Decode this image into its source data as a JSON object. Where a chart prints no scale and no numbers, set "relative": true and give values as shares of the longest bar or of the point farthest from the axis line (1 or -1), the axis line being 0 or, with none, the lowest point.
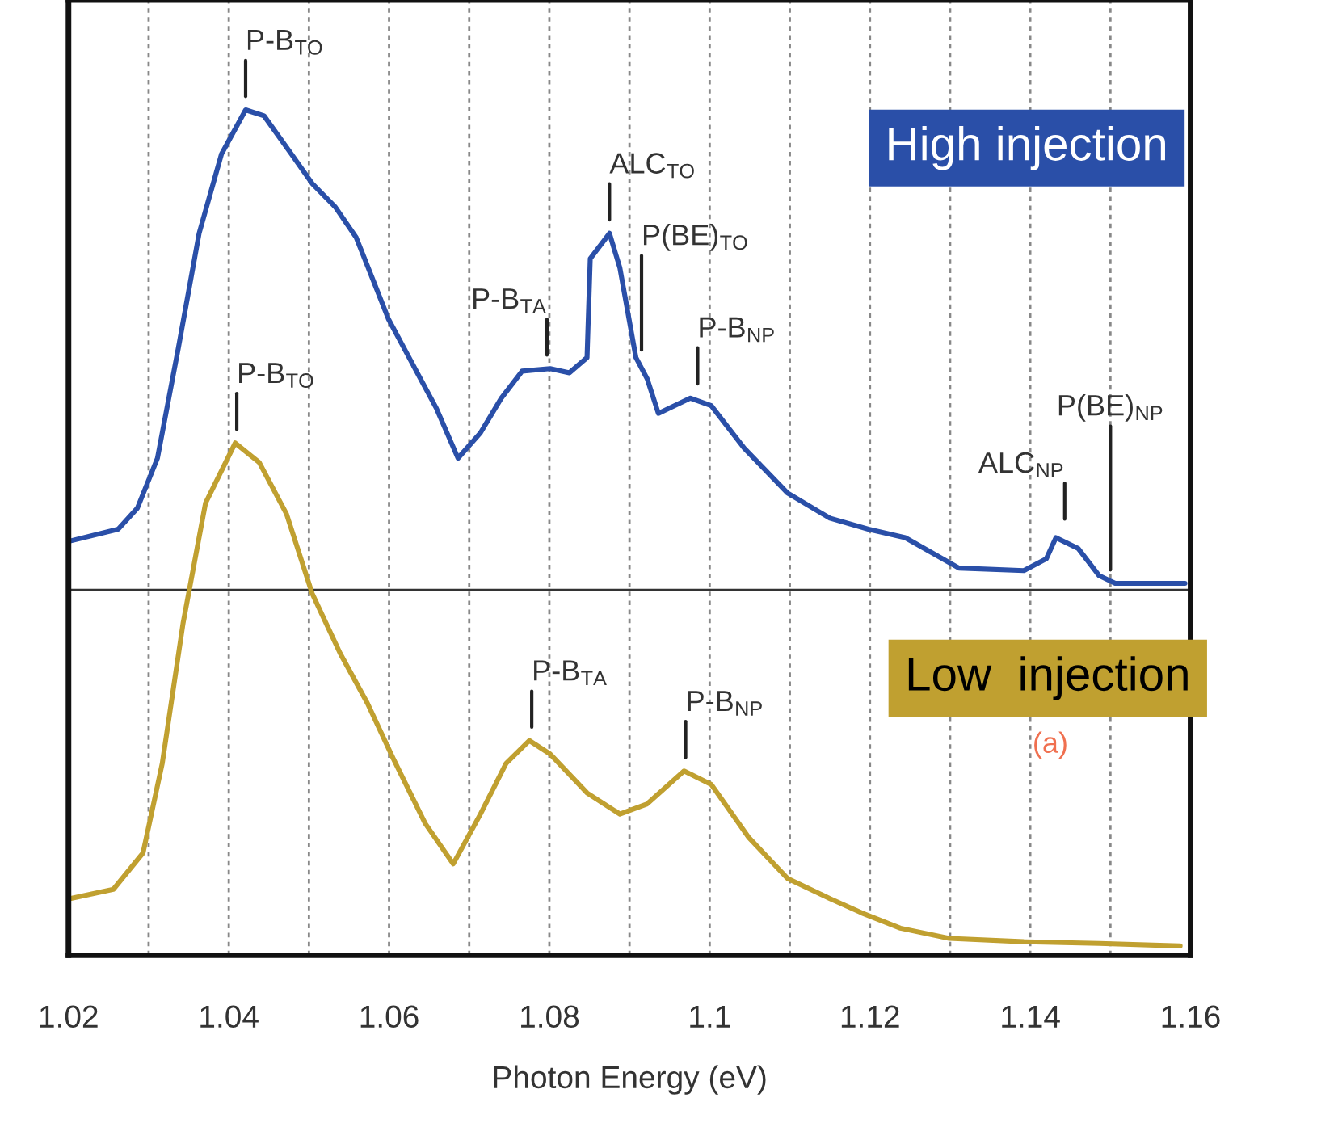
{
  "chart_data": {
    "type": "line",
    "relative": true,
    "xlabel": "Photon Energy (eV)",
    "xlim": [
      1.02,
      1.16
    ],
    "xticks": [
      1.02,
      {
        "value": 1.03,
        "label": null
      },
      1.04,
      {
        "value": 1.05,
        "label": null
      },
      1.06,
      {
        "value": 1.07,
        "label": null
      },
      1.08,
      {
        "value": 1.09,
        "label": null
      },
      1.1,
      {
        "value": 1.11,
        "label": null
      },
      1.12,
      {
        "value": 1.13,
        "label": null
      },
      1.14,
      {
        "value": 1.15,
        "label": null
      },
      1.16
    ],
    "grid": "x",
    "legend": false,
    "tick_labels": "x",
    "ref_lines": [
      {
        "axis": "y",
        "value": 0.432,
        "color": "#333333"
      }
    ],
    "series": [
      {
        "name": "High injection",
        "color": "#2a4fa8",
        "x": [
          1.0202,
          1.0262,
          1.0286,
          1.0311,
          1.0337,
          1.0363,
          1.0391,
          1.0421,
          1.0444,
          1.0478,
          1.0504,
          1.0533,
          1.0559,
          1.0579,
          1.0599,
          1.0625,
          1.0659,
          1.0686,
          1.0714,
          1.074,
          1.0766,
          1.0801,
          1.0825,
          1.0847,
          1.0851,
          1.0875,
          1.0888,
          1.0908,
          1.0922,
          1.0936,
          1.0976,
          1.1002,
          1.1043,
          1.1097,
          1.115,
          1.1198,
          1.1244,
          1.1311,
          1.1392,
          1.142,
          1.1432,
          1.146,
          1.1486,
          1.1506,
          1.1593
        ],
        "values": [
          0.49,
          0.504,
          0.529,
          0.588,
          0.718,
          0.854,
          0.948,
          1.0,
          0.993,
          0.948,
          0.913,
          0.885,
          0.849,
          0.801,
          0.753,
          0.707,
          0.647,
          0.588,
          0.618,
          0.659,
          0.691,
          0.694,
          0.689,
          0.707,
          0.824,
          0.854,
          0.813,
          0.707,
          0.682,
          0.641,
          0.659,
          0.65,
          0.6,
          0.547,
          0.517,
          0.504,
          0.494,
          0.458,
          0.455,
          0.469,
          0.494,
          0.481,
          0.449,
          0.44,
          0.44
        ]
      },
      {
        "name": "Low  injection",
        "color": "#c0a030",
        "x": [
          1.0202,
          1.0256,
          1.0293,
          1.0317,
          1.0343,
          1.0371,
          1.0408,
          1.0438,
          1.0472,
          1.0504,
          1.0539,
          1.0573,
          1.0605,
          1.0645,
          1.068,
          1.0714,
          1.0746,
          1.0775,
          1.0801,
          1.0847,
          1.0888,
          1.0922,
          1.0968,
          1.1002,
          1.1049,
          1.1097,
          1.115,
          1.119,
          1.1238,
          1.1299,
          1.1392,
          1.1486,
          1.1587
        ],
        "values": [
          0.067,
          0.078,
          0.121,
          0.227,
          0.393,
          0.535,
          0.606,
          0.583,
          0.522,
          0.428,
          0.357,
          0.298,
          0.233,
          0.156,
          0.108,
          0.167,
          0.227,
          0.254,
          0.238,
          0.192,
          0.167,
          0.179,
          0.218,
          0.202,
          0.139,
          0.091,
          0.067,
          0.05,
          0.032,
          0.02,
          0.016,
          0.014,
          0.011
        ]
      }
    ],
    "annotations": [
      {
        "text": "P-B$_{TO}$",
        "x": 1.0421,
        "y": 1.0
      },
      {
        "text": "ALC$_{TO}$",
        "x": 1.0875,
        "y": 0.854
      },
      {
        "text": "P-B$_{TA}$",
        "x": 1.0797,
        "y": 0.694
      },
      {
        "text": "P(BE)$_{TO}$",
        "x": 1.0915,
        "y": 0.7
      },
      {
        "text": "P-B$_{NP}$",
        "x": 1.0985,
        "y": 0.66
      },
      {
        "text": "ALC$_{NP}$",
        "x": 1.1443,
        "y": 0.5
      },
      {
        "text": "P(BE)$_{NP}$",
        "x": 1.15,
        "y": 0.44
      },
      {
        "text": "P-B$_{TO}$",
        "x": 1.041,
        "y": 0.606
      },
      {
        "text": "P-B$_{TA}$",
        "x": 1.0778,
        "y": 0.254
      },
      {
        "text": "P-B$_{NP}$",
        "x": 1.097,
        "y": 0.218
      },
      "(a)"
    ]
  }
}
